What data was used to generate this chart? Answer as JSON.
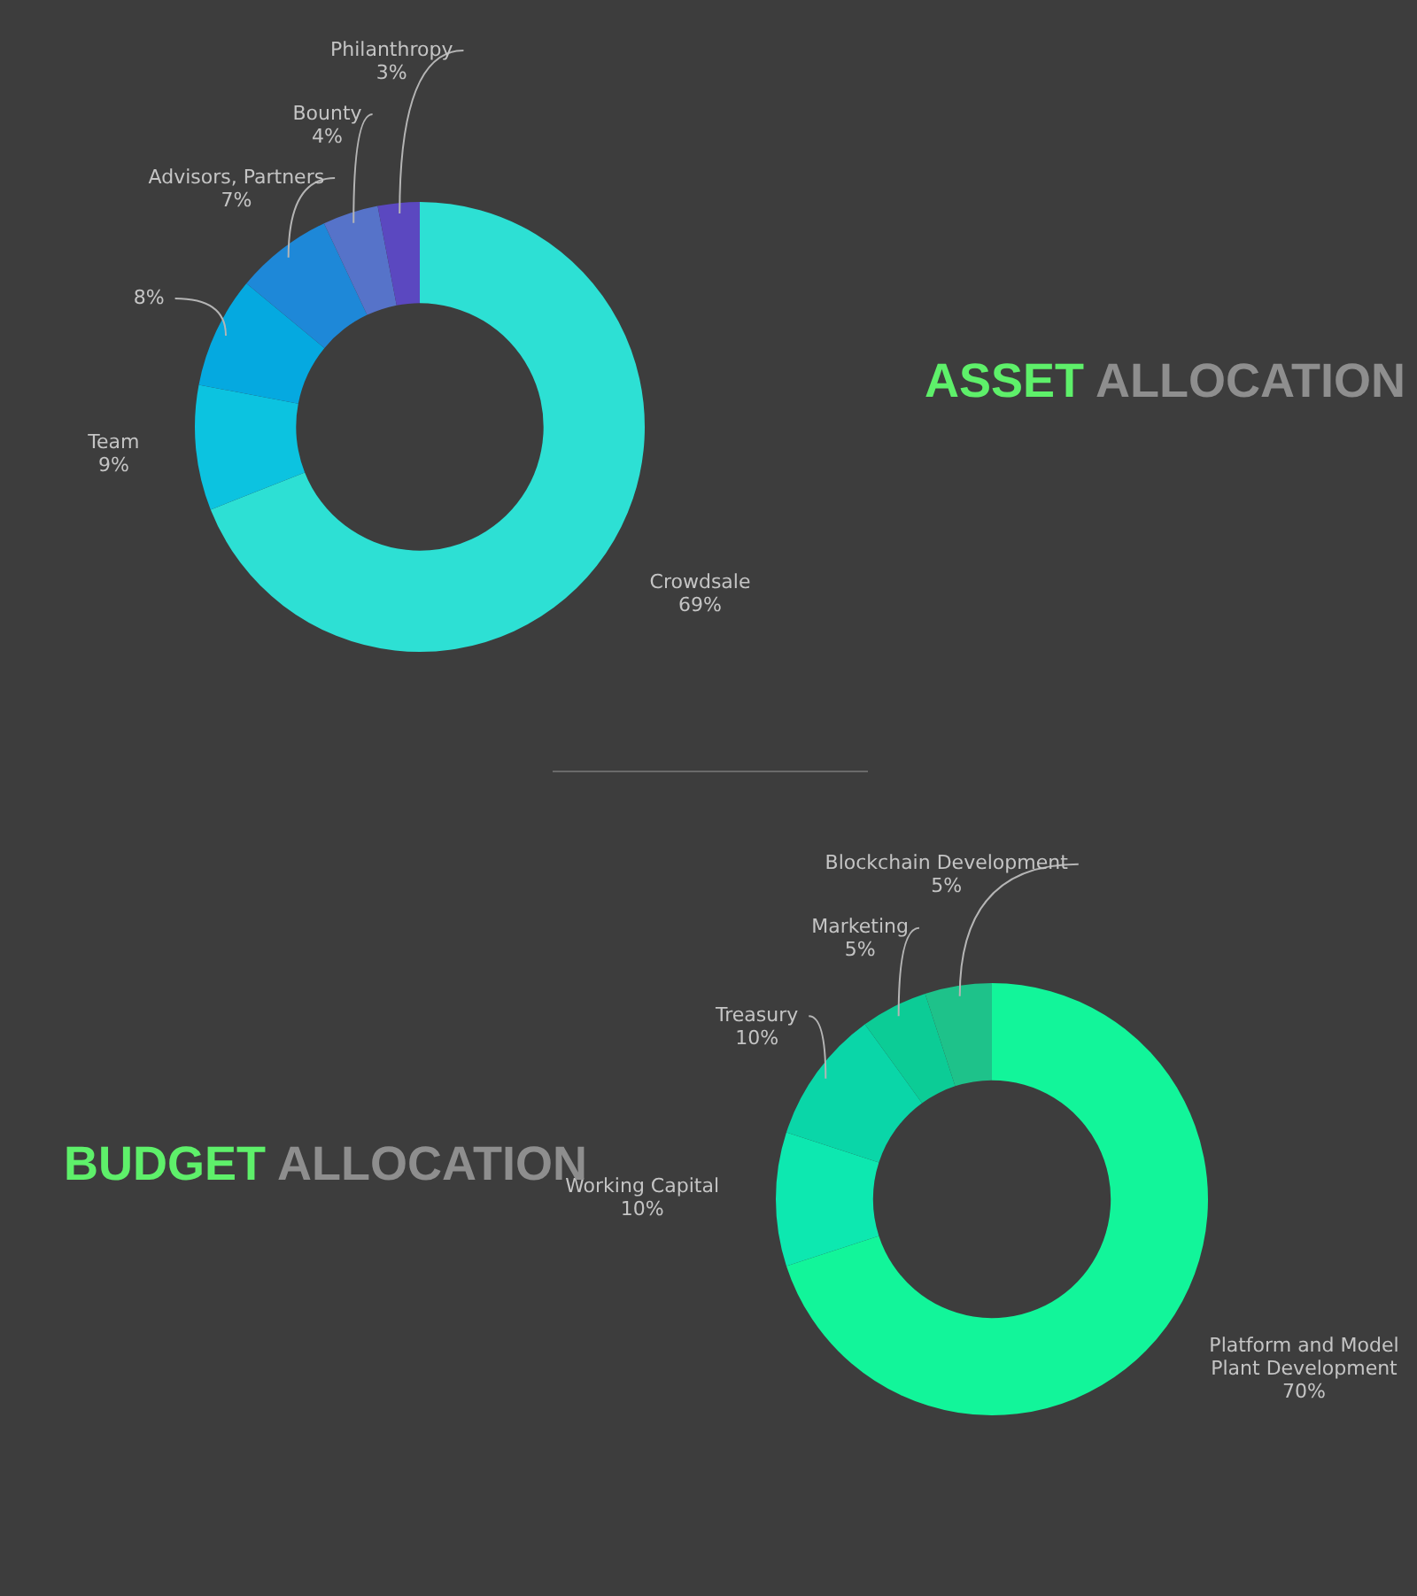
{
  "chart_data": [
    {
      "type": "donut",
      "title": "ASSET ALLOCATION",
      "categories": [
        "Crowdsale",
        "Team",
        null,
        "Advisors, Partners",
        "Bounty",
        "Philanthropy"
      ],
      "values": [
        69,
        9,
        8,
        7,
        4,
        3
      ],
      "colors": [
        "#2de0d4",
        "#0cc3e0",
        "#05a9e0",
        "#1e88d8",
        "#5673c9",
        "#5b48c0"
      ],
      "value_labels": [
        "69%",
        "9%",
        "8%",
        "7%",
        "4%",
        "3%"
      ]
    },
    {
      "type": "donut",
      "title": "BUDGET ALLOCATION",
      "categories": [
        "Platform and Model Plant Development",
        "Working Capital",
        "Treasury",
        "Marketing",
        "Blockchain Development"
      ],
      "values": [
        70,
        10,
        10,
        5,
        5
      ],
      "colors": [
        "#12f59a",
        "#0de8b0",
        "#0ad6a8",
        "#0ccc96",
        "#1ec28a"
      ],
      "value_labels": [
        "70%",
        "10%",
        "10%",
        "5%",
        "5%"
      ]
    }
  ]
}
